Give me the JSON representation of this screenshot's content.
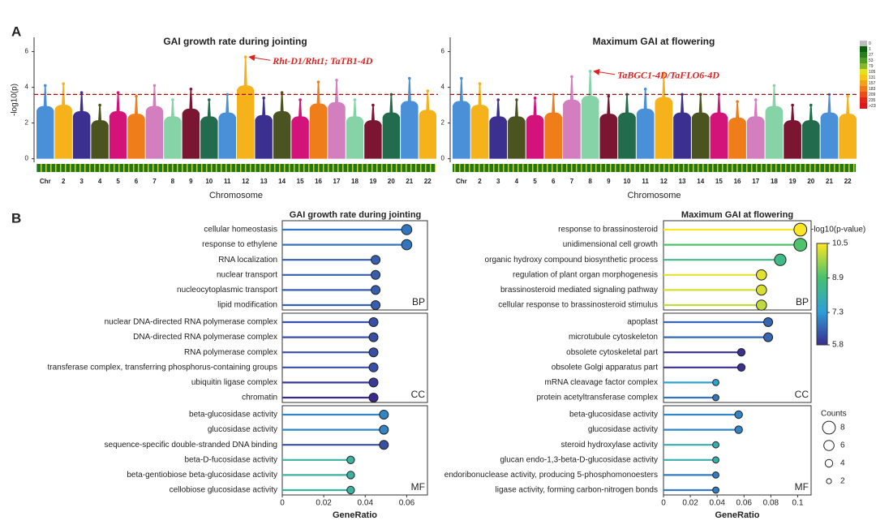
{
  "panel_labels": [
    "A",
    "B"
  ],
  "density_scale": {
    "labels": [
      "0",
      "1",
      "27",
      "53",
      "79",
      "105",
      "131",
      "157",
      "183",
      "209",
      "235",
      ">235"
    ],
    "colors": [
      "#bdbdbd",
      "#0b5e0b",
      "#2a7d1e",
      "#4d9a26",
      "#86b82a",
      "#e6e21a",
      "#f5c518",
      "#f4a01a",
      "#f07a1a",
      "#ea4c1a",
      "#e3251b",
      "#d7191c"
    ]
  },
  "colorbar": {
    "title": "-log10(p-value)",
    "lim": [
      5.8,
      10.5
    ],
    "ticks": [
      5.8,
      7.3,
      8.9,
      10.5
    ],
    "colors": [
      "#3b2a8c",
      "#2e9fd8",
      "#47c16e",
      "#f9e624"
    ]
  },
  "size_legend": {
    "title": "Counts",
    "values": [
      8,
      6,
      4,
      2
    ]
  },
  "chart_data": [
    {
      "type": "manhattan",
      "title": "GAI growth rate during jointing",
      "ylabel": "-log10(p)",
      "xlabel": "Chromosome",
      "annotation": "Rht-D1/Rht1; TaTB1-4D",
      "threshold": 3.6,
      "ylim": [
        -0.2,
        6.8
      ],
      "yticks": [
        0,
        2,
        4,
        6
      ],
      "categories": [
        "Chr",
        "2",
        "3",
        "4",
        "5",
        "6",
        "7",
        "8",
        "9",
        "10",
        "11",
        "12",
        "13",
        "14",
        "15",
        "16",
        "17",
        "18",
        "19",
        "20",
        "21",
        "22"
      ],
      "values": [
        4.1,
        4.2,
        3.7,
        3.0,
        3.7,
        3.5,
        4.1,
        3.3,
        3.9,
        3.3,
        3.6,
        5.7,
        3.4,
        3.7,
        3.3,
        4.3,
        4.4,
        3.3,
        3.0,
        3.6,
        4.5,
        3.8
      ],
      "colors": [
        "#4a90d9",
        "#f5b21b",
        "#3b2f8f",
        "#4b5320",
        "#d3127a",
        "#ef7d1a",
        "#d37fbf",
        "#86d3a8",
        "#7a1631",
        "#226b4d",
        "#4a90d9",
        "#f5b21b",
        "#3b2f8f",
        "#4b5320",
        "#d3127a",
        "#ef7d1a",
        "#d37fbf",
        "#86d3a8",
        "#7a1631",
        "#226b4d",
        "#4a90d9",
        "#f5b21b"
      ]
    },
    {
      "type": "manhattan",
      "title": "Maximum GAI at flowering",
      "xlabel": "Chromosome",
      "annotation": "TaBGC1-4D/TaFLO6-4D",
      "threshold": 3.6,
      "ylim": [
        -0.2,
        6.8
      ],
      "yticks": [
        0,
        2,
        4,
        6
      ],
      "categories": [
        "Chr",
        "2",
        "3",
        "4",
        "5",
        "6",
        "7",
        "8",
        "9",
        "10",
        "11",
        "12",
        "13",
        "14",
        "15",
        "16",
        "17",
        "18",
        "19",
        "20",
        "21",
        "22"
      ],
      "values": [
        4.5,
        4.2,
        3.3,
        3.3,
        3.4,
        3.6,
        4.6,
        4.9,
        3.5,
        3.6,
        3.9,
        4.8,
        3.6,
        3.6,
        3.6,
        3.2,
        3.3,
        4.1,
        3.0,
        3.0,
        3.6,
        3.5
      ],
      "colors": [
        "#4a90d9",
        "#f5b21b",
        "#3b2f8f",
        "#4b5320",
        "#d3127a",
        "#ef7d1a",
        "#d37fbf",
        "#86d3a8",
        "#7a1631",
        "#226b4d",
        "#4a90d9",
        "#f5b21b",
        "#3b2f8f",
        "#4b5320",
        "#d3127a",
        "#ef7d1a",
        "#d37fbf",
        "#86d3a8",
        "#7a1631",
        "#226b4d",
        "#4a90d9",
        "#f5b21b"
      ]
    },
    {
      "type": "lollipop",
      "title": "GAI growth rate during jointing",
      "xlabel": "GeneRatio",
      "xlim": [
        0,
        0.07
      ],
      "xticks": [
        0,
        0.02,
        0.04,
        0.06
      ],
      "facets": [
        {
          "label": "BP",
          "categories": [
            "cellular homeostasis",
            "response to ethylene",
            "RNA localization",
            "nuclear transport",
            "nucleocytoplasmic transport",
            "lipid modification"
          ],
          "values": [
            0.06,
            0.06,
            0.045,
            0.045,
            0.045,
            0.045
          ],
          "color_values": [
            6.8,
            6.8,
            6.5,
            6.5,
            6.5,
            6.5
          ],
          "sizes": [
            6,
            6,
            5,
            5,
            5,
            5
          ]
        },
        {
          "label": "CC",
          "categories": [
            "nuclear DNA-directed RNA polymerase complex",
            "DNA-directed RNA polymerase complex",
            "RNA polymerase complex",
            "transferase complex, transferring phosphorus-containing groups",
            "ubiquitin ligase complex",
            "chromatin"
          ],
          "values": [
            0.044,
            0.044,
            0.044,
            0.044,
            0.044,
            0.044
          ],
          "color_values": [
            6.3,
            6.3,
            6.3,
            6.3,
            6.0,
            5.8
          ],
          "sizes": [
            5,
            5,
            5,
            5,
            5,
            5
          ]
        },
        {
          "label": "MF",
          "categories": [
            "beta-glucosidase activity",
            "glucosidase activity",
            "sequence-specific double-stranded DNA binding",
            "beta-D-fucosidase activity",
            "beta-gentiobiose beta-glucosidase activity",
            "cellobiose glucosidase activity"
          ],
          "values": [
            0.049,
            0.049,
            0.049,
            0.033,
            0.033,
            0.033
          ],
          "color_values": [
            7.0,
            7.0,
            6.3,
            8.2,
            8.2,
            8.2
          ],
          "sizes": [
            5,
            5,
            5,
            4,
            4,
            4
          ]
        }
      ]
    },
    {
      "type": "lollipop",
      "title": "Maximum GAI at flowering",
      "xlabel": "GeneRatio",
      "xlim": [
        0,
        0.11
      ],
      "xticks": [
        0,
        0.02,
        0.04,
        0.06,
        0.08,
        0.1
      ],
      "facets": [
        {
          "label": "BP",
          "categories": [
            "response to brassinosteroid",
            "unidimensional cell growth",
            "organic hydroxy compound biosynthetic process",
            "regulation of plant organ morphogenesis",
            "brassinosteroid mediated signaling pathway",
            "cellular response to brassinosteroid stimulus"
          ],
          "values": [
            0.102,
            0.102,
            0.087,
            0.073,
            0.073,
            0.073
          ],
          "color_values": [
            10.5,
            9.0,
            8.6,
            10.3,
            10.2,
            10.0
          ],
          "sizes": [
            8,
            8,
            7,
            6,
            6,
            6
          ]
        },
        {
          "label": "CC",
          "categories": [
            "apoplast",
            "microtubule cytoskeleton",
            "obsolete cytoskeletal part",
            "obsolete Golgi apparatus part",
            "mRNA cleavage factor complex",
            "protein acetyltransferase complex"
          ],
          "values": [
            0.078,
            0.078,
            0.058,
            0.058,
            0.039,
            0.039
          ],
          "color_values": [
            6.6,
            6.6,
            5.9,
            5.9,
            7.5,
            6.8
          ],
          "sizes": [
            5,
            5,
            4,
            4,
            3,
            3
          ]
        },
        {
          "label": "MF",
          "categories": [
            "beta-glucosidase activity",
            "glucosidase activity",
            "steroid hydroxylase activity",
            "glucan endo-1,3-beta-D-glucosidase activity",
            "endoribonuclease activity, producing 5-phosphomonoesters",
            "ligase activity, forming carbon-nitrogen bonds"
          ],
          "values": [
            0.056,
            0.056,
            0.039,
            0.039,
            0.039,
            0.039
          ],
          "color_values": [
            7.0,
            7.0,
            8.0,
            8.0,
            6.9,
            6.9
          ],
          "sizes": [
            4,
            4,
            3,
            3,
            3,
            3
          ]
        }
      ]
    }
  ]
}
